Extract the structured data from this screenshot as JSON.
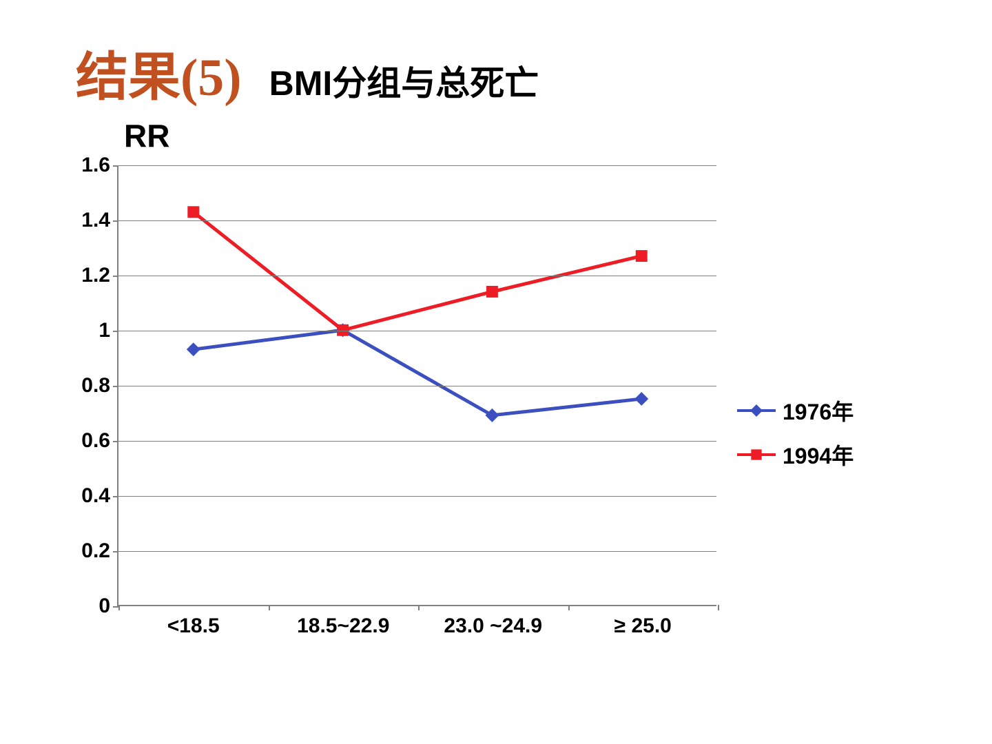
{
  "header": {
    "title_main": "结果(5)",
    "title_sub": "BMI分组与总死亡",
    "title_main_color": "#c05020",
    "title_main_fontsize": 76,
    "title_sub_fontsize": 50
  },
  "chart": {
    "type": "line",
    "y_title": "RR",
    "y_title_fontsize": 46,
    "background_color": "#ffffff",
    "axis_color": "#808080",
    "grid_color": "#808080",
    "tick_fontsize": 30,
    "ylim": [
      0,
      1.6
    ],
    "ytick_step": 0.2,
    "yticks": [
      "0",
      "0.2",
      "0.4",
      "0.6",
      "0.8",
      "1",
      "1.2",
      "1.4",
      "1.6"
    ],
    "categories": [
      "<18.5",
      "18.5~22.9",
      "23.0 ~24.9",
      "≥ 25.0"
    ],
    "x_positions": [
      0.125,
      0.375,
      0.625,
      0.875
    ],
    "line_width": 5,
    "marker_size": 20,
    "series": [
      {
        "name": "1976年",
        "color": "#3b4fc0",
        "marker": "diamond",
        "values": [
          0.93,
          1.0,
          0.69,
          0.75
        ]
      },
      {
        "name": "1994年",
        "color": "#ee1c25",
        "marker": "square",
        "values": [
          1.43,
          1.0,
          1.14,
          1.27
        ]
      }
    ],
    "legend": {
      "fontsize": 32,
      "position": "right-middle"
    }
  }
}
